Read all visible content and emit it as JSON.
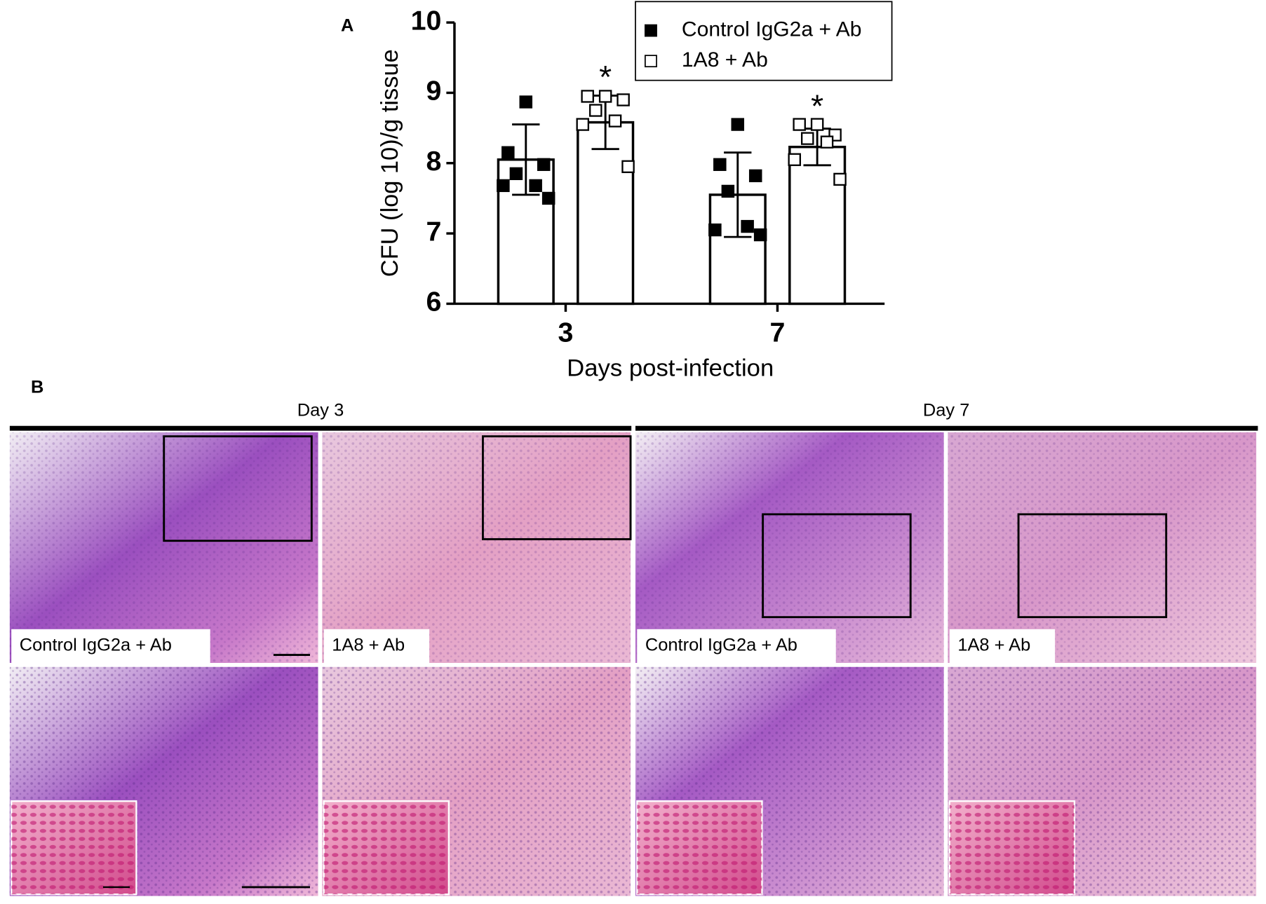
{
  "panel_labels": [
    "A",
    "B"
  ],
  "chart_data": {
    "type": "bar",
    "y_label": "CFU (log 10)/g tissue",
    "x_label": "Days post-infection",
    "categories": [
      "3",
      "7"
    ],
    "series": [
      {
        "name": "Control IgG2a + Ab",
        "color": "#000000",
        "marker": "filled-square",
        "values": [
          8.05,
          7.55
        ],
        "errors": [
          0.5,
          0.6
        ],
        "points": [
          [
            8.87,
            8.15,
            7.98,
            7.85,
            7.68,
            7.68,
            7.5
          ],
          [
            8.55,
            7.98,
            7.82,
            7.6,
            7.1,
            7.05,
            6.98
          ]
        ]
      },
      {
        "name": "1A8 + Ab",
        "color": "#ffffff",
        "marker": "open-square",
        "values": [
          8.58,
          8.23
        ],
        "errors": [
          0.38,
          0.26
        ],
        "points": [
          [
            8.95,
            8.95,
            8.9,
            8.75,
            8.6,
            8.55,
            7.95
          ],
          [
            8.55,
            8.55,
            8.4,
            8.35,
            8.3,
            8.05,
            7.77
          ]
        ],
        "annotations": [
          "*",
          "*"
        ]
      }
    ],
    "ylim": [
      6,
      10
    ],
    "yticks": [
      6,
      7,
      8,
      9,
      10
    ],
    "grid": false,
    "legend": "upper right"
  },
  "panel_b": {
    "days": [
      "Day 3",
      "Day 7"
    ],
    "image_labels": [
      "Control IgG2a + Ab",
      "1A8 + Ab",
      "Control IgG2a + Ab",
      "1A8 + Ab"
    ]
  }
}
